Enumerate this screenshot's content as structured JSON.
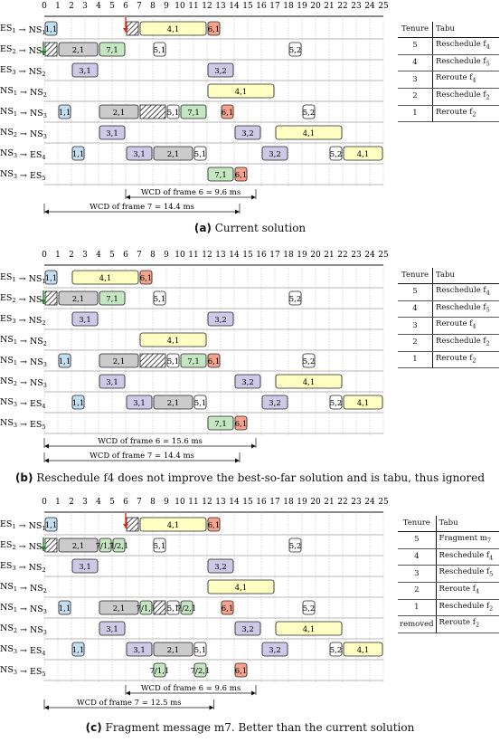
{
  "axis": {
    "ticks": [
      "0",
      "1",
      "2",
      "3",
      "4",
      "5",
      "6",
      "7",
      "8",
      "9",
      "10",
      "11",
      "12",
      "13",
      "14",
      "15",
      "16",
      "17",
      "18",
      "19",
      "20",
      "21",
      "22",
      "23",
      "24",
      "25"
    ]
  },
  "colors": {
    "blue": "#c5dff1",
    "gray": "#cbcbcb",
    "green": "#c4e7c1",
    "yellow": "#ffffc4",
    "purple": "#cdc9e7",
    "red": "#f5a38c",
    "white": "#ffffff",
    "arrow_red": "#d9261c",
    "arrow_green": "#1b8a2e"
  },
  "row_labels": [
    {
      "src": "ES",
      "src_sub": "1",
      "dst": "NS",
      "dst_sub": "1"
    },
    {
      "src": "ES",
      "src_sub": "2",
      "dst": "NS",
      "dst_sub": "1"
    },
    {
      "src": "ES",
      "src_sub": "3",
      "dst": "NS",
      "dst_sub": "2"
    },
    {
      "src": "NS",
      "src_sub": "1",
      "dst": "NS",
      "dst_sub": "2"
    },
    {
      "src": "NS",
      "src_sub": "1",
      "dst": "NS",
      "dst_sub": "3"
    },
    {
      "src": "NS",
      "src_sub": "2",
      "dst": "NS",
      "dst_sub": "3"
    },
    {
      "src": "NS",
      "src_sub": "3",
      "dst": "ES",
      "dst_sub": "4"
    },
    {
      "src": "NS",
      "src_sub": "3",
      "dst": "ES",
      "dst_sub": "5"
    }
  ],
  "panels": [
    {
      "caption_letter": "(a)",
      "caption_text": "Current solution",
      "red_arrow_at": 6,
      "green_arrow": true,
      "rows": [
        [
          {
            "s": 0,
            "e": 1,
            "t": "1,1",
            "c": "blue"
          },
          {
            "s": 6,
            "e": 7,
            "t": "",
            "c": "hatch"
          },
          {
            "s": 7,
            "e": 12,
            "t": "4,1",
            "c": "yellow"
          },
          {
            "s": 12,
            "e": 13,
            "t": "6,1",
            "c": "red"
          }
        ],
        [
          {
            "s": 0,
            "e": 1,
            "t": "",
            "c": "hatch"
          },
          {
            "s": 1,
            "e": 4,
            "t": "2,1",
            "c": "gray"
          },
          {
            "s": 4,
            "e": 6,
            "t": "7,1",
            "c": "green"
          },
          {
            "s": 8,
            "e": 9,
            "t": "5,1",
            "c": "white"
          },
          {
            "s": 18,
            "e": 19,
            "t": "5,2",
            "c": "white"
          }
        ],
        [
          {
            "s": 2,
            "e": 4,
            "t": "3,1",
            "c": "purple"
          },
          {
            "s": 12,
            "e": 14,
            "t": "3,2",
            "c": "purple"
          }
        ],
        [
          {
            "s": 12,
            "e": 17,
            "t": "4,1",
            "c": "yellow"
          }
        ],
        [
          {
            "s": 1,
            "e": 2,
            "t": "1,1",
            "c": "blue"
          },
          {
            "s": 4,
            "e": 7,
            "t": "2,1",
            "c": "gray"
          },
          {
            "s": 7,
            "e": 9,
            "t": "",
            "c": "hatch"
          },
          {
            "s": 9,
            "e": 10,
            "t": "5,1",
            "c": "white"
          },
          {
            "s": 10,
            "e": 12,
            "t": "7,1",
            "c": "green"
          },
          {
            "s": 13,
            "e": 14,
            "t": "6,1",
            "c": "red"
          },
          {
            "s": 19,
            "e": 20,
            "t": "5,2",
            "c": "white"
          }
        ],
        [
          {
            "s": 4,
            "e": 6,
            "t": "3,1",
            "c": "purple"
          },
          {
            "s": 14,
            "e": 16,
            "t": "3,2",
            "c": "purple"
          },
          {
            "s": 17,
            "e": 22,
            "t": "4,1",
            "c": "yellow"
          }
        ],
        [
          {
            "s": 2,
            "e": 3,
            "t": "1,1",
            "c": "blue"
          },
          {
            "s": 6,
            "e": 8,
            "t": "3,1",
            "c": "purple"
          },
          {
            "s": 8,
            "e": 11,
            "t": "2,1",
            "c": "gray"
          },
          {
            "s": 11,
            "e": 12,
            "t": "5,1",
            "c": "white"
          },
          {
            "s": 16,
            "e": 18,
            "t": "3,2",
            "c": "purple"
          },
          {
            "s": 21,
            "e": 22,
            "t": "5,2",
            "c": "white"
          },
          {
            "s": 22,
            "e": 25,
            "t": "4,1",
            "c": "yellow"
          }
        ],
        [
          {
            "s": 12,
            "e": 14,
            "t": "7,1",
            "c": "green"
          },
          {
            "s": 14,
            "e": 15,
            "t": "6,1",
            "c": "red"
          }
        ]
      ],
      "wcd": [
        {
          "label": "WCD of frame 6 = 9.6 ms",
          "from": 6,
          "to": 15.6
        },
        {
          "label": "WCD of frame 7 = 14.4 ms",
          "from": 0,
          "to": 14.4
        }
      ],
      "tabu": {
        "h1": "Tenure",
        "h2": "Tabu",
        "rows": [
          {
            "n": "5",
            "t": "Reschedule f",
            "sub": "4"
          },
          {
            "n": "4",
            "t": "Reschedule f",
            "sub": "5"
          },
          {
            "n": "3",
            "t": "Reroute f",
            "sub": "4"
          },
          {
            "n": "2",
            "t": "Reschedule f",
            "sub": "2"
          },
          {
            "n": "1",
            "t": "Reroute f",
            "sub": "2"
          }
        ]
      }
    },
    {
      "caption_letter": "(b)",
      "caption_text": "Reschedule f4 does not improve the best-so-far solution and is tabu, thus ignored",
      "red_arrow_at": null,
      "green_arrow": true,
      "rows": [
        [
          {
            "s": 0,
            "e": 1,
            "t": "1,1",
            "c": "blue"
          },
          {
            "s": 2,
            "e": 7,
            "t": "4,1",
            "c": "yellow"
          },
          {
            "s": 7,
            "e": 8,
            "t": "6,1",
            "c": "red"
          }
        ],
        [
          {
            "s": 0,
            "e": 1,
            "t": "",
            "c": "hatch"
          },
          {
            "s": 1,
            "e": 4,
            "t": "2,1",
            "c": "gray"
          },
          {
            "s": 4,
            "e": 6,
            "t": "7,1",
            "c": "green"
          },
          {
            "s": 8,
            "e": 9,
            "t": "5,1",
            "c": "white"
          },
          {
            "s": 18,
            "e": 19,
            "t": "5,2",
            "c": "white"
          }
        ],
        [
          {
            "s": 2,
            "e": 4,
            "t": "3,1",
            "c": "purple"
          },
          {
            "s": 12,
            "e": 14,
            "t": "3,2",
            "c": "purple"
          }
        ],
        [
          {
            "s": 7,
            "e": 12,
            "t": "4,1",
            "c": "yellow"
          }
        ],
        [
          {
            "s": 1,
            "e": 2,
            "t": "1,1",
            "c": "blue"
          },
          {
            "s": 4,
            "e": 7,
            "t": "2,1",
            "c": "gray"
          },
          {
            "s": 7,
            "e": 9,
            "t": "",
            "c": "hatch"
          },
          {
            "s": 9,
            "e": 10,
            "t": "5,1",
            "c": "white"
          },
          {
            "s": 10,
            "e": 12,
            "t": "7,1",
            "c": "green"
          },
          {
            "s": 12,
            "e": 13,
            "t": "6,1",
            "c": "red"
          },
          {
            "s": 19,
            "e": 20,
            "t": "5,2",
            "c": "white"
          }
        ],
        [
          {
            "s": 4,
            "e": 6,
            "t": "3,1",
            "c": "purple"
          },
          {
            "s": 14,
            "e": 16,
            "t": "3,2",
            "c": "purple"
          },
          {
            "s": 17,
            "e": 22,
            "t": "4,1",
            "c": "yellow"
          }
        ],
        [
          {
            "s": 2,
            "e": 3,
            "t": "1,1",
            "c": "blue"
          },
          {
            "s": 6,
            "e": 8,
            "t": "3,1",
            "c": "purple"
          },
          {
            "s": 8,
            "e": 11,
            "t": "2,1",
            "c": "gray"
          },
          {
            "s": 11,
            "e": 12,
            "t": "5,1",
            "c": "white"
          },
          {
            "s": 16,
            "e": 18,
            "t": "3,2",
            "c": "purple"
          },
          {
            "s": 21,
            "e": 22,
            "t": "5,2",
            "c": "white"
          },
          {
            "s": 22,
            "e": 25,
            "t": "4,1",
            "c": "yellow"
          }
        ],
        [
          {
            "s": 12,
            "e": 14,
            "t": "7,1",
            "c": "green"
          },
          {
            "s": 14,
            "e": 15,
            "t": "6,1",
            "c": "red"
          }
        ]
      ],
      "wcd": [
        {
          "label": "WCD of frame 6 = 15.6 ms",
          "from": 0,
          "to": 15.6
        },
        {
          "label": "WCD of frame 7 = 14.4 ms",
          "from": 0,
          "to": 14.4
        }
      ],
      "tabu": {
        "h1": "Tenure",
        "h2": "Tabu",
        "rows": [
          {
            "n": "5",
            "t": "Reschedule f",
            "sub": "4"
          },
          {
            "n": "4",
            "t": "Reschedule f",
            "sub": "5"
          },
          {
            "n": "3",
            "t": "Reroute f",
            "sub": "4"
          },
          {
            "n": "2",
            "t": "Reschedule f",
            "sub": "2"
          },
          {
            "n": "1",
            "t": "Reroute f",
            "sub": "2"
          }
        ]
      }
    },
    {
      "caption_letter": "(c)",
      "caption_text": "Fragment message m7. Better than the current solution",
      "red_arrow_at": 6,
      "green_arrow": true,
      "rows": [
        [
          {
            "s": 0,
            "e": 1,
            "t": "1,1",
            "c": "blue"
          },
          {
            "s": 6,
            "e": 7,
            "t": "",
            "c": "hatch"
          },
          {
            "s": 7,
            "e": 12,
            "t": "4,1",
            "c": "yellow"
          },
          {
            "s": 12,
            "e": 13,
            "t": "6,1",
            "c": "red"
          }
        ],
        [
          {
            "s": 0,
            "e": 1,
            "t": "",
            "c": "hatch"
          },
          {
            "s": 1,
            "e": 4,
            "t": "2,1",
            "c": "gray"
          },
          {
            "s": 4,
            "e": 5,
            "t": "7/1,1",
            "c": "green"
          },
          {
            "s": 5,
            "e": 6,
            "t": "7/2,1",
            "c": "green"
          },
          {
            "s": 8,
            "e": 9,
            "t": "5,1",
            "c": "white"
          },
          {
            "s": 18,
            "e": 19,
            "t": "5,2",
            "c": "white"
          }
        ],
        [
          {
            "s": 2,
            "e": 4,
            "t": "3,1",
            "c": "purple"
          },
          {
            "s": 12,
            "e": 14,
            "t": "3,2",
            "c": "purple"
          }
        ],
        [
          {
            "s": 12,
            "e": 17,
            "t": "4,1",
            "c": "yellow"
          }
        ],
        [
          {
            "s": 1,
            "e": 2,
            "t": "1,1",
            "c": "blue"
          },
          {
            "s": 4,
            "e": 7,
            "t": "2,1",
            "c": "gray"
          },
          {
            "s": 7,
            "e": 8,
            "t": "7/1,1",
            "c": "green"
          },
          {
            "s": 8,
            "e": 9,
            "t": "",
            "c": "hatch"
          },
          {
            "s": 9,
            "e": 10,
            "t": "5,1",
            "c": "white"
          },
          {
            "s": 10,
            "e": 11,
            "t": "7/2,1",
            "c": "green"
          },
          {
            "s": 13,
            "e": 14,
            "t": "6,1",
            "c": "red"
          },
          {
            "s": 19,
            "e": 20,
            "t": "5,2",
            "c": "white"
          }
        ],
        [
          {
            "s": 4,
            "e": 6,
            "t": "3,1",
            "c": "purple"
          },
          {
            "s": 14,
            "e": 16,
            "t": "3,2",
            "c": "purple"
          },
          {
            "s": 17,
            "e": 22,
            "t": "4,1",
            "c": "yellow"
          }
        ],
        [
          {
            "s": 2,
            "e": 3,
            "t": "1,1",
            "c": "blue"
          },
          {
            "s": 6,
            "e": 8,
            "t": "3,1",
            "c": "purple"
          },
          {
            "s": 8,
            "e": 11,
            "t": "2,1",
            "c": "gray"
          },
          {
            "s": 11,
            "e": 12,
            "t": "5,1",
            "c": "white"
          },
          {
            "s": 16,
            "e": 18,
            "t": "3,2",
            "c": "purple"
          },
          {
            "s": 21,
            "e": 22,
            "t": "5,2",
            "c": "white"
          },
          {
            "s": 22,
            "e": 25,
            "t": "4,1",
            "c": "yellow"
          }
        ],
        [
          {
            "s": 8,
            "e": 9,
            "t": "7/1,1",
            "c": "green"
          },
          {
            "s": 11,
            "e": 12,
            "t": "7/2,1",
            "c": "green"
          },
          {
            "s": 14,
            "e": 15,
            "t": "6,1",
            "c": "red"
          }
        ]
      ],
      "wcd": [
        {
          "label": "WCD of frame 6 = 9.6 ms",
          "from": 6,
          "to": 15.6
        },
        {
          "label": "WCD of frame 7 = 12.5 ms",
          "from": 0,
          "to": 12.5
        }
      ],
      "tabu": {
        "h1": "Tenure",
        "h2": "Tabu",
        "rows": [
          {
            "n": "5",
            "t": "Fragment m",
            "sub": "7"
          },
          {
            "n": "4",
            "t": "Reschedule f",
            "sub": "4"
          },
          {
            "n": "3",
            "t": "Reschedule f",
            "sub": "5"
          },
          {
            "n": "2",
            "t": "Reroute f",
            "sub": "4"
          },
          {
            "n": "1",
            "t": "Reschedule f",
            "sub": "2"
          },
          {
            "n": "removed",
            "t": "Reroute f",
            "sub": "2"
          }
        ]
      }
    }
  ]
}
